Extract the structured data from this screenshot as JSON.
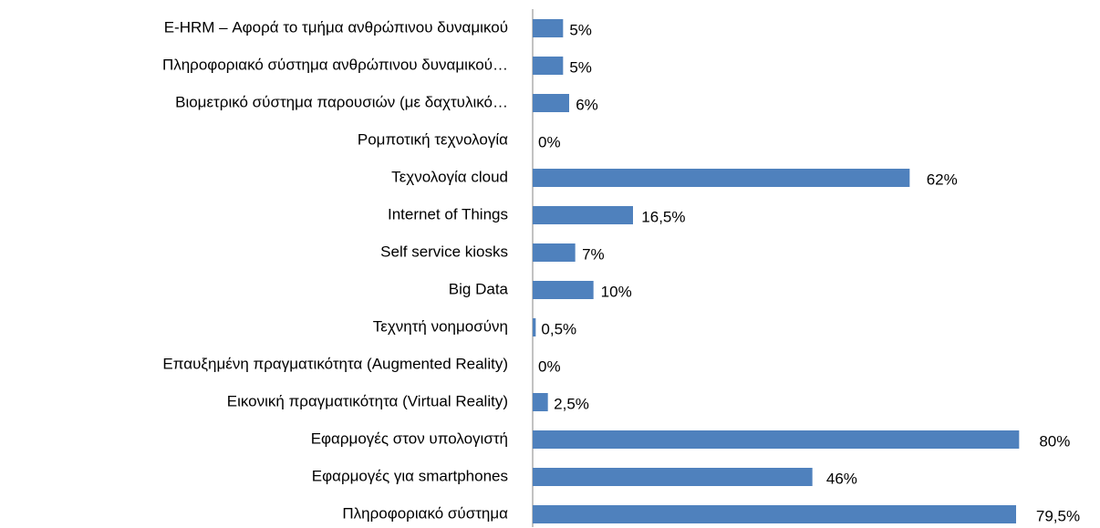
{
  "chart_data": {
    "type": "barh",
    "categories": [
      "E-HRM – Αφορά το τμήμα ανθρώπινου δυναμικού",
      "Πληροφοριακό σύστημα ανθρώπινου δυναμικού…",
      "Βιομετρικό σύστημα παρουσιών (με δαχτυλικό…",
      "Ρομποτική τεχνολογία",
      "Τεχνολογία cloud",
      "Internet of Things",
      "Self service kiosks",
      "Big Data",
      "Τεχνητή νοημοσύνη",
      "Επαυξημένη πραγματικότητα (Augmented Reality)",
      "Εικονική πραγματικότητα (Virtual Reality)",
      "Εφαρμογές στον υπολογιστή",
      "Εφαρμογές για smartphones",
      "Πληροφοριακό σύστημα"
    ],
    "values": [
      5,
      5,
      6,
      0,
      62,
      16.5,
      7,
      10,
      0.5,
      0,
      2.5,
      80,
      46,
      79.5
    ],
    "value_labels": [
      "5%",
      "5%",
      "6%",
      "0%",
      "62%",
      "16,5%",
      "7%",
      "10%",
      "0,5%",
      "0%",
      "2,5%",
      "80%",
      "46%",
      "79,5%"
    ],
    "color": "#4f81bd",
    "xlim": [
      0,
      90
    ]
  }
}
